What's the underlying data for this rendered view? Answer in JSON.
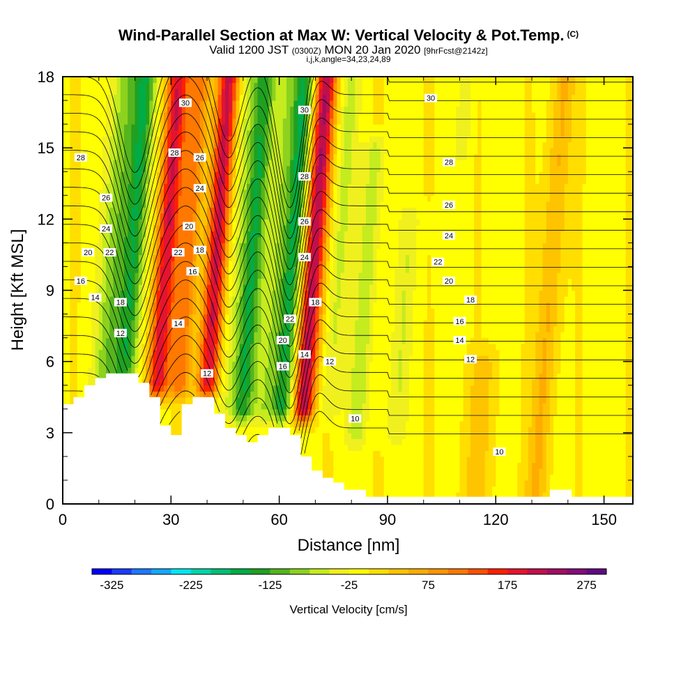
{
  "chart_data": {
    "type": "heatmap",
    "title": "Wind-Parallel Section at Max W: Vertical Velocity & Pot.Temp.",
    "title_mark": "(C)",
    "subtitle_main": "Valid 1200 JST",
    "subtitle_utc": "(0300Z)",
    "subtitle_date": "MON 20 Jan 2020",
    "subtitle_fcst": "[9hrFcst@2142z]",
    "subtitle2": "i,j,k,angle=34,23,24,89",
    "xlabel": "Distance [nm]",
    "ylabel": "Height [Kft MSL]",
    "xlim": [
      0,
      158
    ],
    "ylim": [
      0,
      18
    ],
    "x_ticks": [
      {
        "value": 0,
        "label": "0"
      },
      {
        "value": 30,
        "label": "30"
      },
      {
        "value": 60,
        "label": "60"
      },
      {
        "value": 90,
        "label": "90"
      },
      {
        "value": 120,
        "label": "120"
      },
      {
        "value": 150,
        "label": "150"
      }
    ],
    "y_ticks": [
      {
        "value": 0,
        "label": "0"
      },
      {
        "value": 3,
        "label": "3"
      },
      {
        "value": 6,
        "label": "6"
      },
      {
        "value": 9,
        "label": "9"
      },
      {
        "value": 12,
        "label": "12"
      },
      {
        "value": 15,
        "label": "15"
      },
      {
        "value": 18,
        "label": "18"
      }
    ],
    "colorbar": {
      "label": "Vertical Velocity [cm/s]",
      "min": -350,
      "max": 300,
      "step": 25,
      "colors": [
        "#0000ff",
        "#1a3cff",
        "#1e78ff",
        "#14a8ff",
        "#00e6f0",
        "#00d6a8",
        "#00c074",
        "#00ac46",
        "#20a020",
        "#56b41e",
        "#8cd21e",
        "#c4ec1e",
        "#f0f01e",
        "#ffff00",
        "#ffde00",
        "#ffc400",
        "#ffac00",
        "#ff9400",
        "#ff7800",
        "#ff5000",
        "#ff2000",
        "#e41430",
        "#c0104a",
        "#a00e62",
        "#800e74",
        "#600a80"
      ],
      "ticks": [
        {
          "value": -325,
          "label": "-325"
        },
        {
          "value": -225,
          "label": "-225"
        },
        {
          "value": -125,
          "label": "-125"
        },
        {
          "value": -25,
          "label": "-25"
        },
        {
          "value": 75,
          "label": "75"
        },
        {
          "value": 175,
          "label": "175"
        },
        {
          "value": 275,
          "label": "275"
        }
      ]
    },
    "terrain": [
      [
        0,
        4.2
      ],
      [
        3,
        4.2
      ],
      [
        3,
        4.5
      ],
      [
        6,
        4.5
      ],
      [
        6,
        5.0
      ],
      [
        9,
        5.0
      ],
      [
        9,
        5.3
      ],
      [
        12,
        5.3
      ],
      [
        12,
        5.5
      ],
      [
        21,
        5.5
      ],
      [
        21,
        5.1
      ],
      [
        24,
        5.1
      ],
      [
        24,
        4.5
      ],
      [
        27,
        4.5
      ],
      [
        27,
        3.3
      ],
      [
        30,
        3.3
      ],
      [
        30,
        2.9
      ],
      [
        33,
        2.9
      ],
      [
        33,
        4.2
      ],
      [
        36,
        4.2
      ],
      [
        36,
        4.5
      ],
      [
        42,
        4.5
      ],
      [
        42,
        3.8
      ],
      [
        45,
        3.8
      ],
      [
        45,
        3.2
      ],
      [
        48,
        3.2
      ],
      [
        48,
        2.9
      ],
      [
        51,
        2.9
      ],
      [
        51,
        2.6
      ],
      [
        54,
        2.6
      ],
      [
        54,
        2.9
      ],
      [
        57,
        2.9
      ],
      [
        57,
        3.2
      ],
      [
        63,
        3.2
      ],
      [
        63,
        2.9
      ],
      [
        66,
        2.9
      ],
      [
        66,
        2.0
      ],
      [
        69,
        2.0
      ],
      [
        69,
        1.4
      ],
      [
        72,
        1.4
      ],
      [
        72,
        1.1
      ],
      [
        75,
        1.1
      ],
      [
        75,
        0.9
      ],
      [
        78,
        0.9
      ],
      [
        78,
        0.6
      ],
      [
        84,
        0.6
      ],
      [
        84,
        0.3
      ],
      [
        126,
        0.3
      ],
      [
        126,
        0.3
      ],
      [
        135,
        0.3
      ],
      [
        135,
        0.6
      ],
      [
        141,
        0.6
      ],
      [
        141,
        0.3
      ],
      [
        158,
        0.3
      ]
    ],
    "w_bands": [
      {
        "x": 14,
        "w": -90,
        "hw": 4,
        "y0": 5,
        "y1": 18
      },
      {
        "x": 19,
        "w": -130,
        "hw": 3,
        "y0": 4,
        "y1": 18
      },
      {
        "x": 28,
        "w": 200,
        "hw": 3,
        "y0": 5,
        "y1": 18
      },
      {
        "x": 34,
        "w": 120,
        "hw": 3,
        "y0": 5,
        "y1": 18
      },
      {
        "x": 42,
        "w": 210,
        "hw": 3,
        "y0": 5,
        "y1": 18
      },
      {
        "x": 47,
        "w": -40,
        "hw": 3,
        "y0": 4,
        "y1": 18
      },
      {
        "x": 52,
        "w": -140,
        "hw": 3,
        "y0": 4,
        "y1": 18
      },
      {
        "x": 58,
        "w": -60,
        "hw": 3,
        "y0": 4,
        "y1": 18
      },
      {
        "x": 63,
        "w": -150,
        "hw": 3,
        "y0": 4,
        "y1": 18
      },
      {
        "x": 69,
        "w": 230,
        "hw": 3,
        "y0": 4,
        "y1": 18
      },
      {
        "x": 76,
        "w": -50,
        "hw": 3,
        "y0": 4,
        "y1": 18
      },
      {
        "x": 84,
        "w": -60,
        "hw": 3,
        "y0": 3,
        "y1": 15
      },
      {
        "x": 95,
        "w": -40,
        "hw": 3,
        "y0": 3,
        "y1": 12
      },
      {
        "x": 108,
        "w": -40,
        "hw": 2,
        "y0": 15,
        "y1": 18
      },
      {
        "x": 118,
        "w": 40,
        "hw": 4,
        "y0": 0,
        "y1": 6
      },
      {
        "x": 135,
        "w": 60,
        "hw": 3,
        "y0": 0,
        "y1": 18
      }
    ],
    "theta_levels": [
      10,
      11,
      12,
      13,
      14,
      15,
      16,
      17,
      18,
      19,
      20,
      21,
      22,
      23,
      24,
      25,
      26,
      27,
      28,
      29,
      30
    ],
    "theta_labels": [
      {
        "text": "28",
        "x": 5,
        "y": 14.6
      },
      {
        "text": "26",
        "x": 12,
        "y": 12.9
      },
      {
        "text": "24",
        "x": 12,
        "y": 11.6
      },
      {
        "text": "22",
        "x": 13,
        "y": 10.6
      },
      {
        "text": "20",
        "x": 7,
        "y": 10.6
      },
      {
        "text": "16",
        "x": 5,
        "y": 9.4
      },
      {
        "text": "14",
        "x": 9,
        "y": 8.7
      },
      {
        "text": "18",
        "x": 16,
        "y": 8.5
      },
      {
        "text": "12",
        "x": 16,
        "y": 7.2
      },
      {
        "text": "30",
        "x": 34,
        "y": 16.9
      },
      {
        "text": "28",
        "x": 31,
        "y": 14.8
      },
      {
        "text": "26",
        "x": 38,
        "y": 14.6
      },
      {
        "text": "24",
        "x": 38,
        "y": 13.3
      },
      {
        "text": "20",
        "x": 35,
        "y": 11.7
      },
      {
        "text": "22",
        "x": 32,
        "y": 10.6
      },
      {
        "text": "18",
        "x": 38,
        "y": 10.7
      },
      {
        "text": "16",
        "x": 36,
        "y": 9.8
      },
      {
        "text": "14",
        "x": 32,
        "y": 7.6
      },
      {
        "text": "12",
        "x": 40,
        "y": 5.5
      },
      {
        "text": "30",
        "x": 67,
        "y": 16.6
      },
      {
        "text": "28",
        "x": 67,
        "y": 13.8
      },
      {
        "text": "26",
        "x": 67,
        "y": 11.9
      },
      {
        "text": "24",
        "x": 67,
        "y": 10.4
      },
      {
        "text": "18",
        "x": 70,
        "y": 8.5
      },
      {
        "text": "22",
        "x": 63,
        "y": 7.8
      },
      {
        "text": "20",
        "x": 61,
        "y": 6.9
      },
      {
        "text": "16",
        "x": 61,
        "y": 5.8
      },
      {
        "text": "14",
        "x": 67,
        "y": 6.3
      },
      {
        "text": "12",
        "x": 74,
        "y": 6.0
      },
      {
        "text": "30",
        "x": 102,
        "y": 17.1
      },
      {
        "text": "28",
        "x": 107,
        "y": 14.4
      },
      {
        "text": "26",
        "x": 107,
        "y": 12.6
      },
      {
        "text": "24",
        "x": 107,
        "y": 11.3
      },
      {
        "text": "22",
        "x": 104,
        "y": 10.2
      },
      {
        "text": "20",
        "x": 107,
        "y": 9.4
      },
      {
        "text": "18",
        "x": 113,
        "y": 8.6
      },
      {
        "text": "16",
        "x": 110,
        "y": 7.7
      },
      {
        "text": "14",
        "x": 110,
        "y": 6.9
      },
      {
        "text": "12",
        "x": 113,
        "y": 6.1
      },
      {
        "text": "10",
        "x": 81,
        "y": 3.6
      },
      {
        "text": "10",
        "x": 121,
        "y": 2.2
      }
    ]
  }
}
